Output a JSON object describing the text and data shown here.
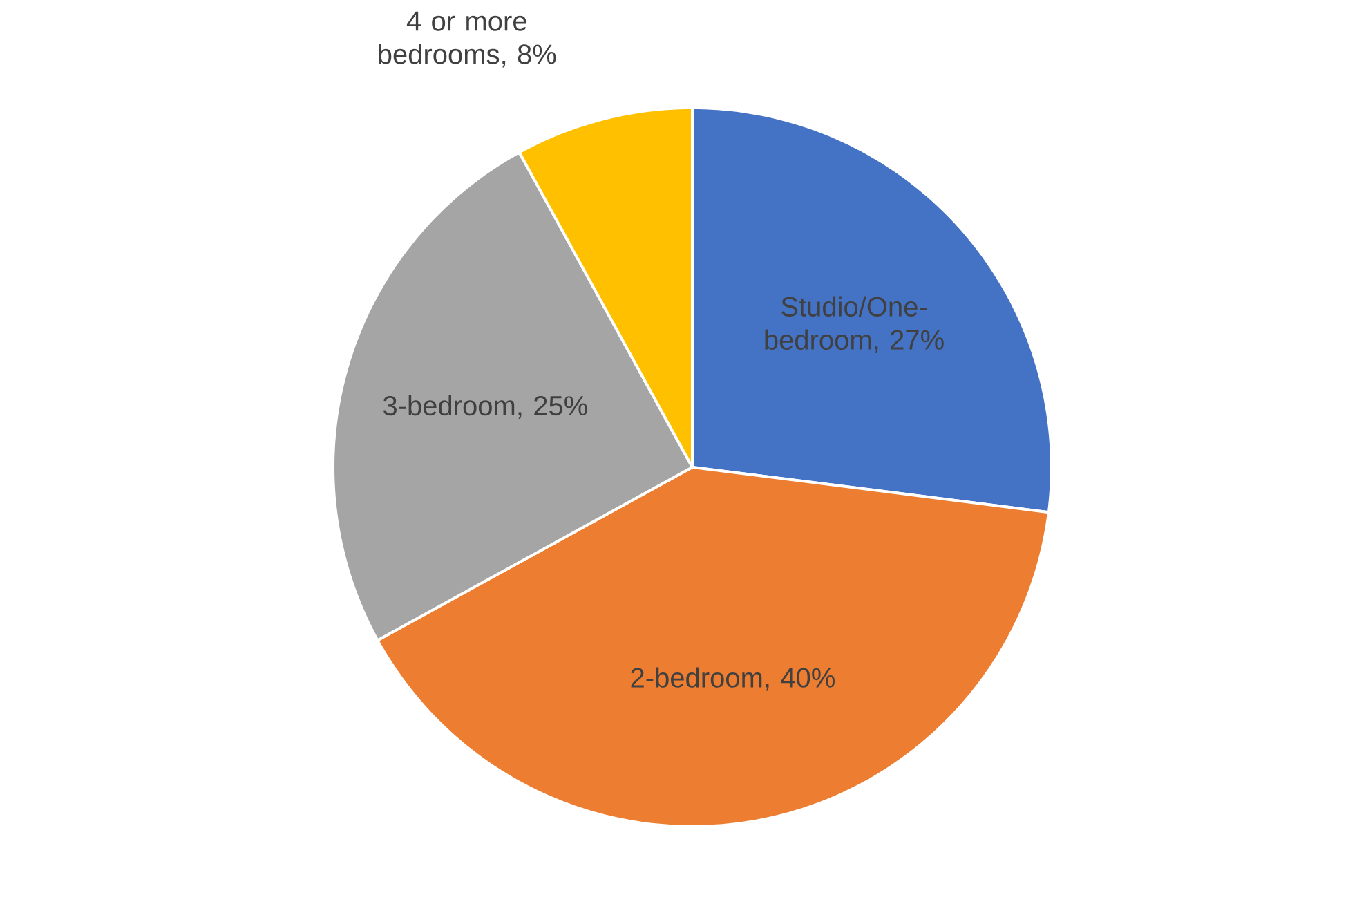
{
  "chart_data": {
    "type": "pie",
    "categories": [
      "Studio/One-bedroom, 27%",
      "2-bedroom, 40%",
      "3-bedroom, 25%",
      "4 or more bedrooms, 8%"
    ],
    "values": [
      27,
      40,
      25,
      8
    ],
    "colors": [
      "#4472c4",
      "#ed7d31",
      "#a5a5a5",
      "#ffc000"
    ]
  }
}
